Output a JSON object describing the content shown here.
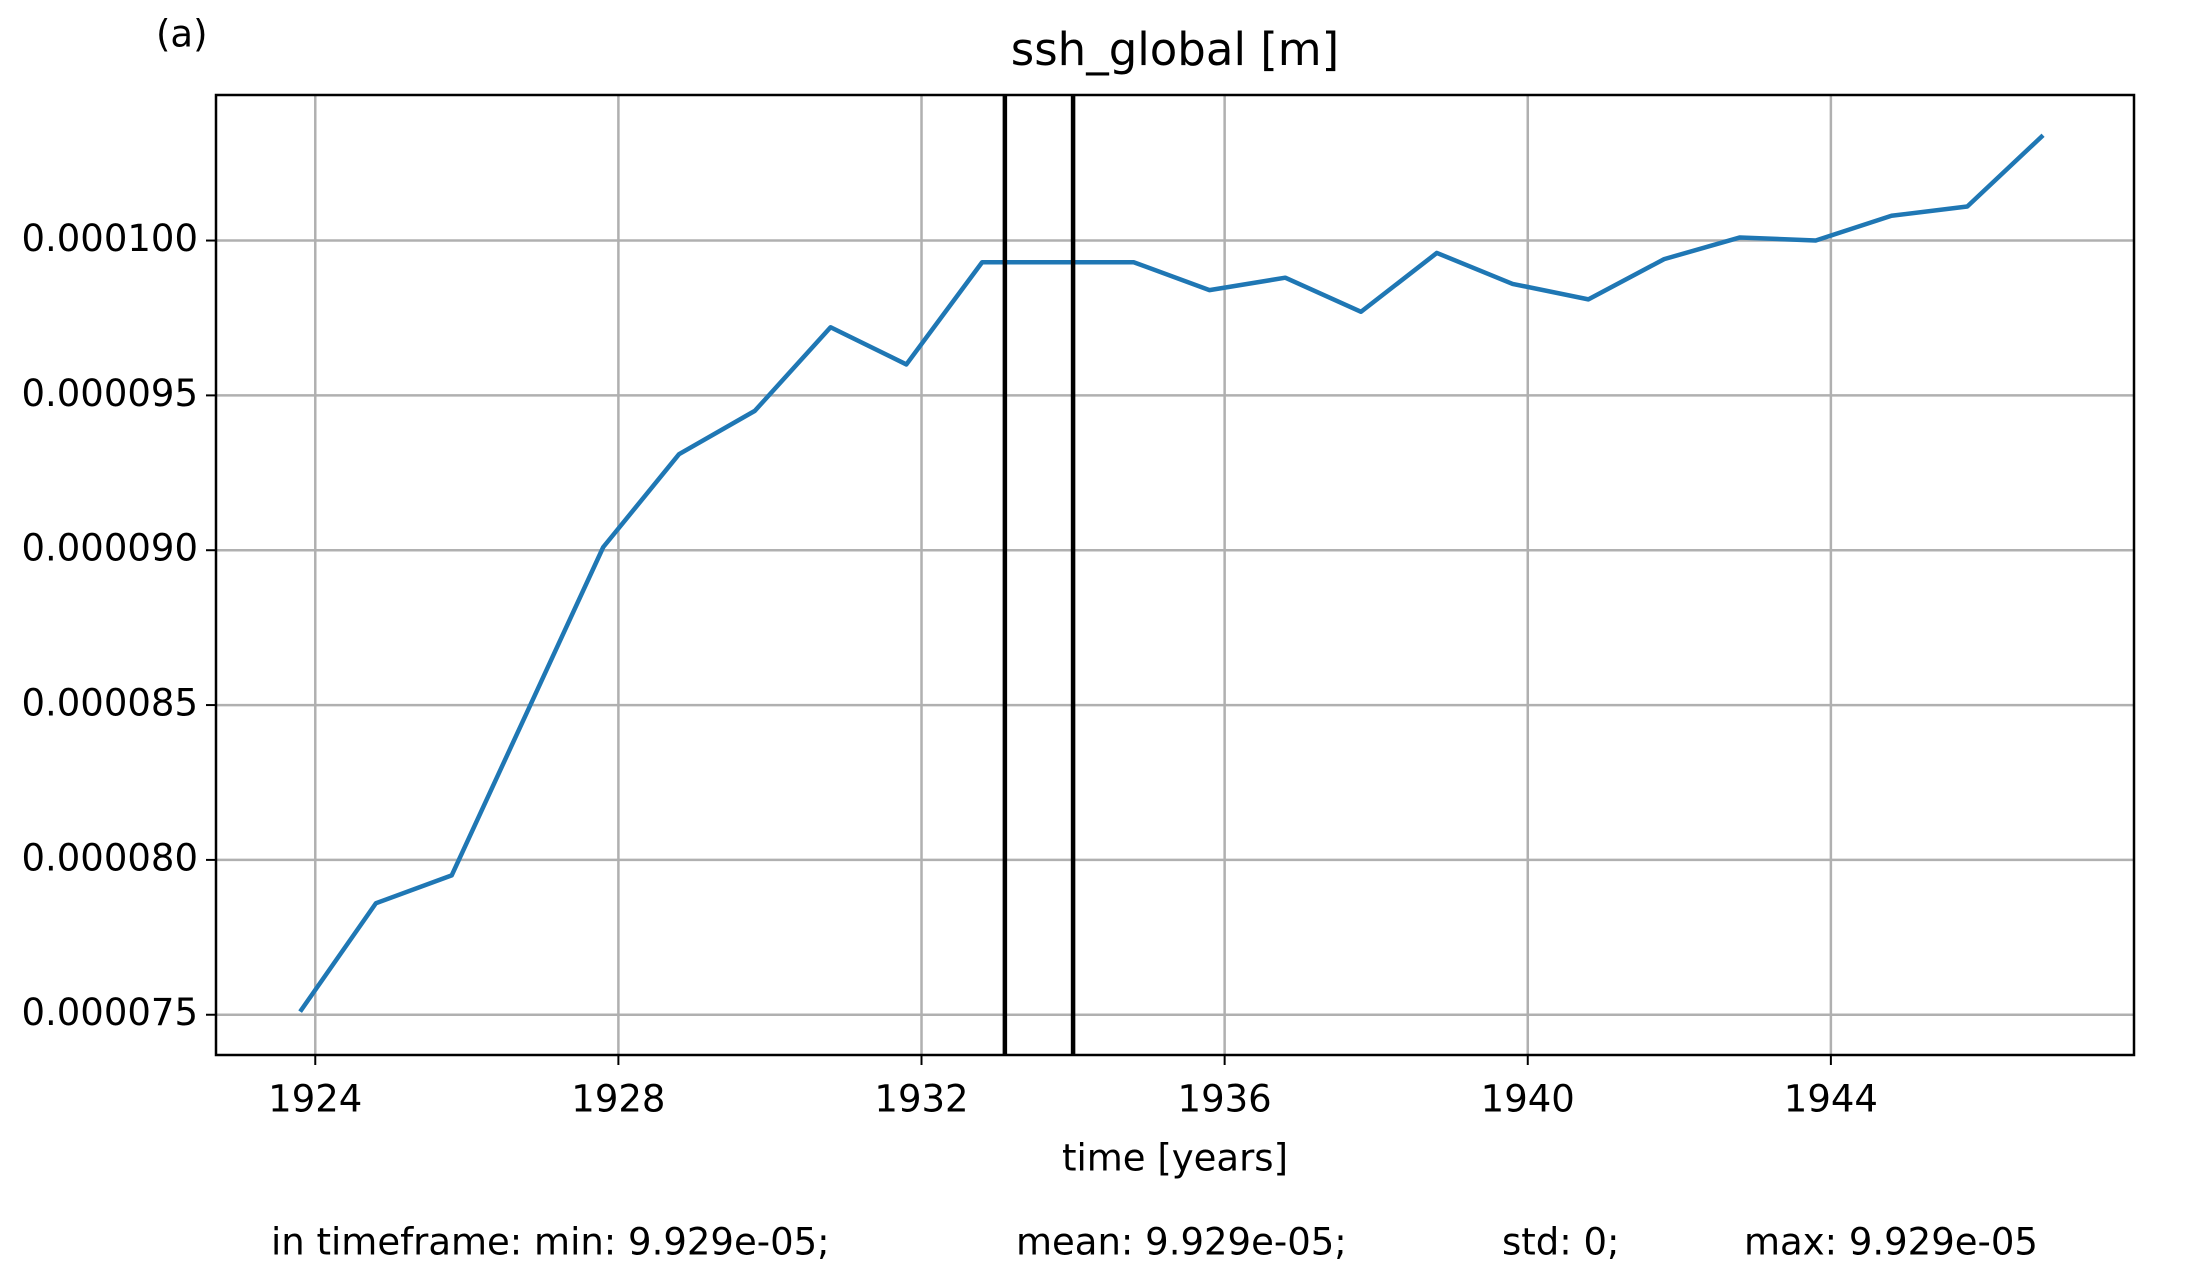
{
  "chart_data": {
    "type": "line",
    "panel_label": "(a)",
    "title": "ssh_global [m]",
    "x_label": "time [years]",
    "x": [
      1923.8,
      1924.8,
      1925.8,
      1926.8,
      1927.8,
      1928.8,
      1929.8,
      1930.8,
      1931.8,
      1932.8,
      1933.8,
      1934.8,
      1935.8,
      1936.8,
      1937.8,
      1938.8,
      1939.8,
      1940.8,
      1941.8,
      1942.8,
      1943.8,
      1944.8,
      1945.8,
      1946.8
    ],
    "series": [
      {
        "name": "ssh_global",
        "color": "#1f77b4",
        "values": [
          7.51e-05,
          7.86e-05,
          7.95e-05,
          8.48e-05,
          9.01e-05,
          9.31e-05,
          9.45e-05,
          9.72e-05,
          9.6e-05,
          9.93e-05,
          9.93e-05,
          9.93e-05,
          9.84e-05,
          9.88e-05,
          9.77e-05,
          9.96e-05,
          9.86e-05,
          9.81e-05,
          9.94e-05,
          0.0001001,
          0.0001,
          0.0001008,
          0.0001011,
          0.0001034
        ]
      }
    ],
    "vlines": [
      1933.1,
      1934.0
    ],
    "xlim": [
      1922.69,
      1948.0
    ],
    "xticks": [
      1924,
      1928,
      1932,
      1936,
      1940,
      1944
    ],
    "ylim": [
      7.37e-05,
      0.0001047
    ],
    "yticks": [
      {
        "value": 7.5e-05,
        "label": "0.000075"
      },
      {
        "value": 8e-05,
        "label": "0.000080"
      },
      {
        "value": 8.5e-05,
        "label": "0.000085"
      },
      {
        "value": 9e-05,
        "label": "0.000090"
      },
      {
        "value": 9.5e-05,
        "label": "0.000095"
      },
      {
        "value": 0.0001,
        "label": "0.000100"
      }
    ],
    "grid": true,
    "stats": [
      "in timeframe: min: 9.929e-05;",
      "mean: 9.929e-05;",
      "std: 0;",
      "max: 9.929e-05"
    ]
  }
}
